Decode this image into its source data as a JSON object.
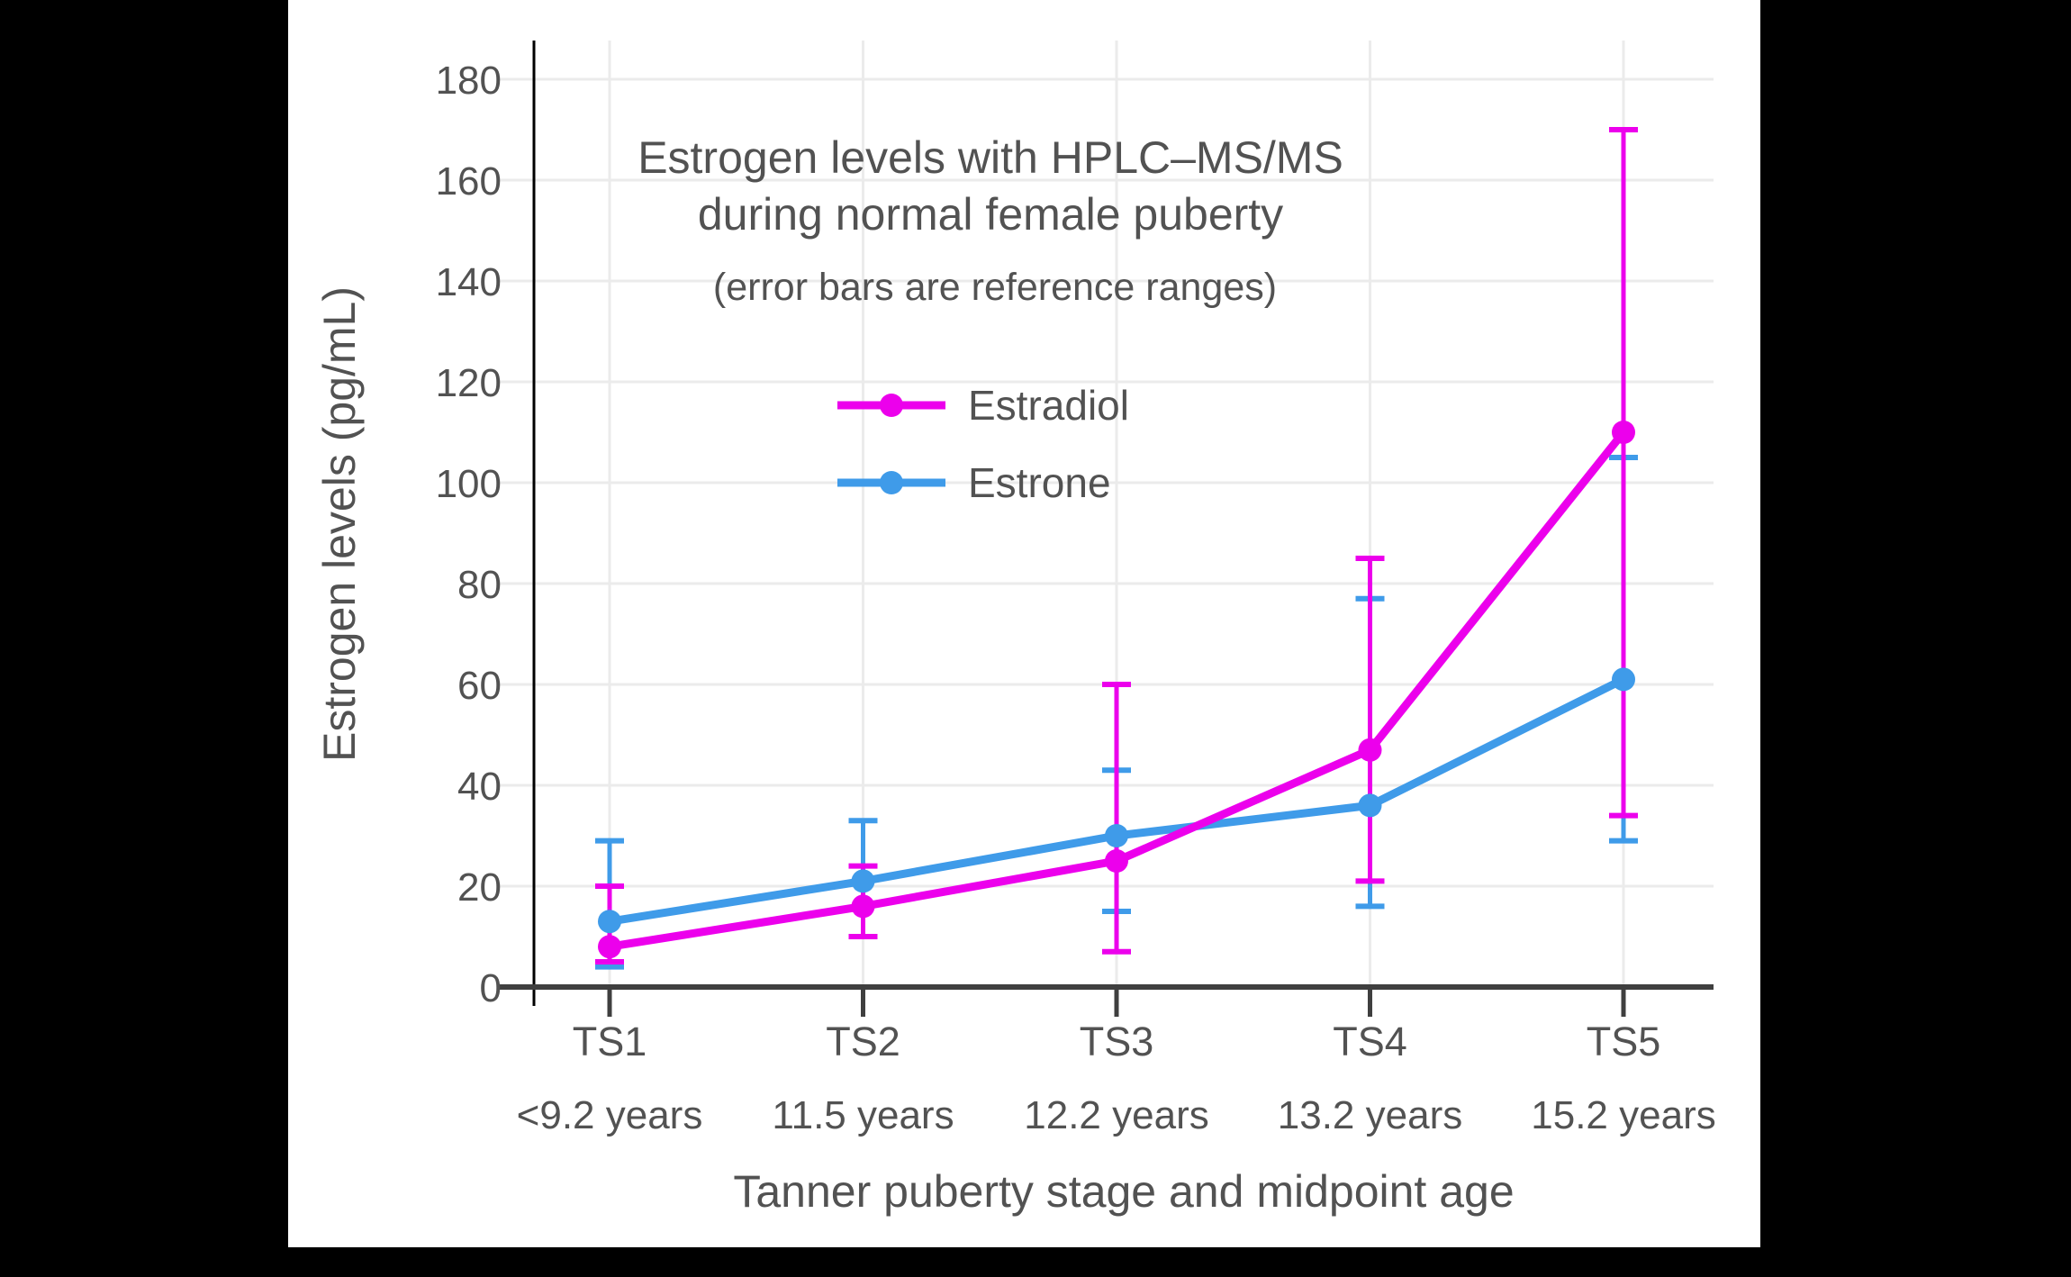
{
  "page": {
    "background": "#000000",
    "canvas_background": "#ffffff"
  },
  "chart_data": {
    "type": "line",
    "title": "Estrogen levels with HPLC–MS/MS",
    "title_line2": "during normal female puberty",
    "subtitle": "(error bars are reference ranges)",
    "xlabel": "Tanner puberty stage and midpoint age",
    "ylabel": "Estrogen levels (pg/mL)",
    "categories": [
      "TS1",
      "TS2",
      "TS3",
      "TS4",
      "TS5"
    ],
    "category_ages": [
      "<9.2 years",
      "11.5 years",
      "12.2 years",
      "13.2 years",
      "15.2 years"
    ],
    "y_ticks": [
      0,
      20,
      40,
      60,
      80,
      100,
      120,
      140,
      160,
      180
    ],
    "ylim": [
      0,
      188
    ],
    "grid": true,
    "legend_position": "inside-upper-left",
    "error_bar_meaning": "reference ranges",
    "series": [
      {
        "name": "Estradiol",
        "color": "#EC00EC",
        "values": [
          8,
          16,
          25,
          47,
          110
        ],
        "range_low": [
          5,
          10,
          7,
          21,
          34
        ],
        "range_high": [
          20,
          24,
          60,
          85,
          170
        ]
      },
      {
        "name": "Estrone",
        "color": "#3F9BE9",
        "values": [
          13,
          21,
          30,
          36,
          61
        ],
        "range_low": [
          4,
          10,
          15,
          16,
          29
        ],
        "range_high": [
          29,
          33,
          43,
          77,
          105
        ]
      }
    ],
    "colors": {
      "x_spine": "#3F3F3F",
      "y_spine": "#000000",
      "gridline": "#EBEBEB",
      "text": "#525252"
    }
  }
}
